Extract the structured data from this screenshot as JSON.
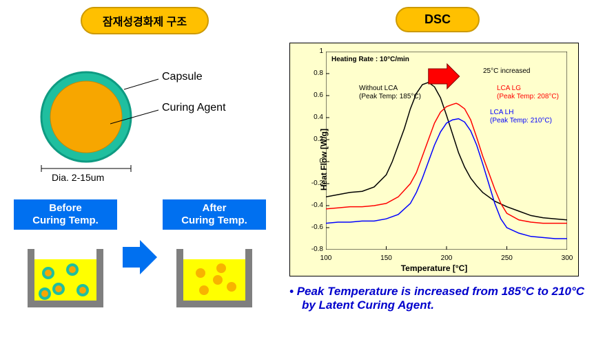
{
  "titles": {
    "left": "잠재성경화제 구조",
    "right": "DSC"
  },
  "capsule": {
    "label_outer": "Capsule",
    "label_inner": "Curing Agent",
    "dimension": "Dia. 2-15um",
    "colors": {
      "ring": "#1fbf9f",
      "ring_border": "#0e9b82",
      "core": "#f7a600"
    }
  },
  "states": {
    "before": "Before\nCuring Temp.",
    "after": "After\nCuring Temp.",
    "label_bg": "#0070f0",
    "fluid_color": "#ffff00",
    "beaker_color": "#7f7f7f",
    "capsule_ring": "#1fbf9f",
    "capsule_core": "#f7a600",
    "dissolved_color": "#f7a600"
  },
  "chart": {
    "bg": "#ffffcc",
    "border": "#000000",
    "heating_rate": "Heating Rate : 10°C/min",
    "arrow_label": "25°C increased",
    "arrow_color": "#ff0000",
    "ylabel": "Heat Flow [W/g]",
    "xlabel": "Temperature [°C]",
    "xlim": [
      100,
      300
    ],
    "ylim": [
      -0.8,
      1.0
    ],
    "xticks": [
      100,
      150,
      200,
      250,
      300
    ],
    "yticks": [
      -0.8,
      -0.6,
      -0.4,
      -0.2,
      0,
      0.2,
      0.4,
      0.6,
      0.8,
      1.0
    ],
    "series": [
      {
        "name": "Without LCA",
        "label": "Without LCA\n(Peak Temp: 185°C)",
        "color": "#000000",
        "points": [
          [
            100,
            -0.32
          ],
          [
            110,
            -0.3
          ],
          [
            120,
            -0.28
          ],
          [
            130,
            -0.27
          ],
          [
            140,
            -0.23
          ],
          [
            150,
            -0.12
          ],
          [
            155,
            0.0
          ],
          [
            160,
            0.15
          ],
          [
            165,
            0.3
          ],
          [
            170,
            0.48
          ],
          [
            175,
            0.62
          ],
          [
            180,
            0.7
          ],
          [
            185,
            0.72
          ],
          [
            190,
            0.68
          ],
          [
            195,
            0.58
          ],
          [
            200,
            0.42
          ],
          [
            205,
            0.25
          ],
          [
            210,
            0.08
          ],
          [
            215,
            -0.05
          ],
          [
            220,
            -0.15
          ],
          [
            225,
            -0.22
          ],
          [
            230,
            -0.28
          ],
          [
            240,
            -0.36
          ],
          [
            250,
            -0.41
          ],
          [
            260,
            -0.45
          ],
          [
            270,
            -0.49
          ],
          [
            280,
            -0.51
          ],
          [
            290,
            -0.52
          ],
          [
            300,
            -0.53
          ]
        ]
      },
      {
        "name": "LCA LG",
        "label": "LCA LG\n(Peak Temp: 208°C)",
        "color": "#ff0000",
        "points": [
          [
            100,
            -0.43
          ],
          [
            110,
            -0.42
          ],
          [
            120,
            -0.41
          ],
          [
            130,
            -0.41
          ],
          [
            140,
            -0.4
          ],
          [
            150,
            -0.38
          ],
          [
            160,
            -0.32
          ],
          [
            170,
            -0.2
          ],
          [
            175,
            -0.1
          ],
          [
            180,
            0.05
          ],
          [
            185,
            0.2
          ],
          [
            190,
            0.35
          ],
          [
            195,
            0.45
          ],
          [
            200,
            0.5
          ],
          [
            205,
            0.52
          ],
          [
            208,
            0.53
          ],
          [
            210,
            0.52
          ],
          [
            215,
            0.48
          ],
          [
            220,
            0.38
          ],
          [
            225,
            0.22
          ],
          [
            230,
            0.05
          ],
          [
            235,
            -0.1
          ],
          [
            240,
            -0.25
          ],
          [
            245,
            -0.38
          ],
          [
            250,
            -0.47
          ],
          [
            260,
            -0.53
          ],
          [
            270,
            -0.55
          ],
          [
            280,
            -0.56
          ],
          [
            290,
            -0.56
          ],
          [
            300,
            -0.56
          ]
        ]
      },
      {
        "name": "LCA LH",
        "label": "LCA LH\n(Peak Temp: 210°C)",
        "color": "#0000ff",
        "points": [
          [
            100,
            -0.56
          ],
          [
            110,
            -0.55
          ],
          [
            120,
            -0.55
          ],
          [
            130,
            -0.54
          ],
          [
            140,
            -0.54
          ],
          [
            150,
            -0.52
          ],
          [
            160,
            -0.48
          ],
          [
            170,
            -0.38
          ],
          [
            175,
            -0.28
          ],
          [
            180,
            -0.15
          ],
          [
            185,
            0.0
          ],
          [
            190,
            0.15
          ],
          [
            195,
            0.27
          ],
          [
            200,
            0.35
          ],
          [
            205,
            0.38
          ],
          [
            210,
            0.39
          ],
          [
            215,
            0.36
          ],
          [
            220,
            0.28
          ],
          [
            225,
            0.15
          ],
          [
            230,
            -0.02
          ],
          [
            235,
            -0.2
          ],
          [
            240,
            -0.38
          ],
          [
            245,
            -0.52
          ],
          [
            250,
            -0.6
          ],
          [
            260,
            -0.65
          ],
          [
            270,
            -0.68
          ],
          [
            280,
            -0.69
          ],
          [
            290,
            -0.7
          ],
          [
            300,
            -0.7
          ]
        ]
      }
    ]
  },
  "conclusion": "Peak Temperature is increased from 185°C to 210°C by Latent Curing Agent."
}
